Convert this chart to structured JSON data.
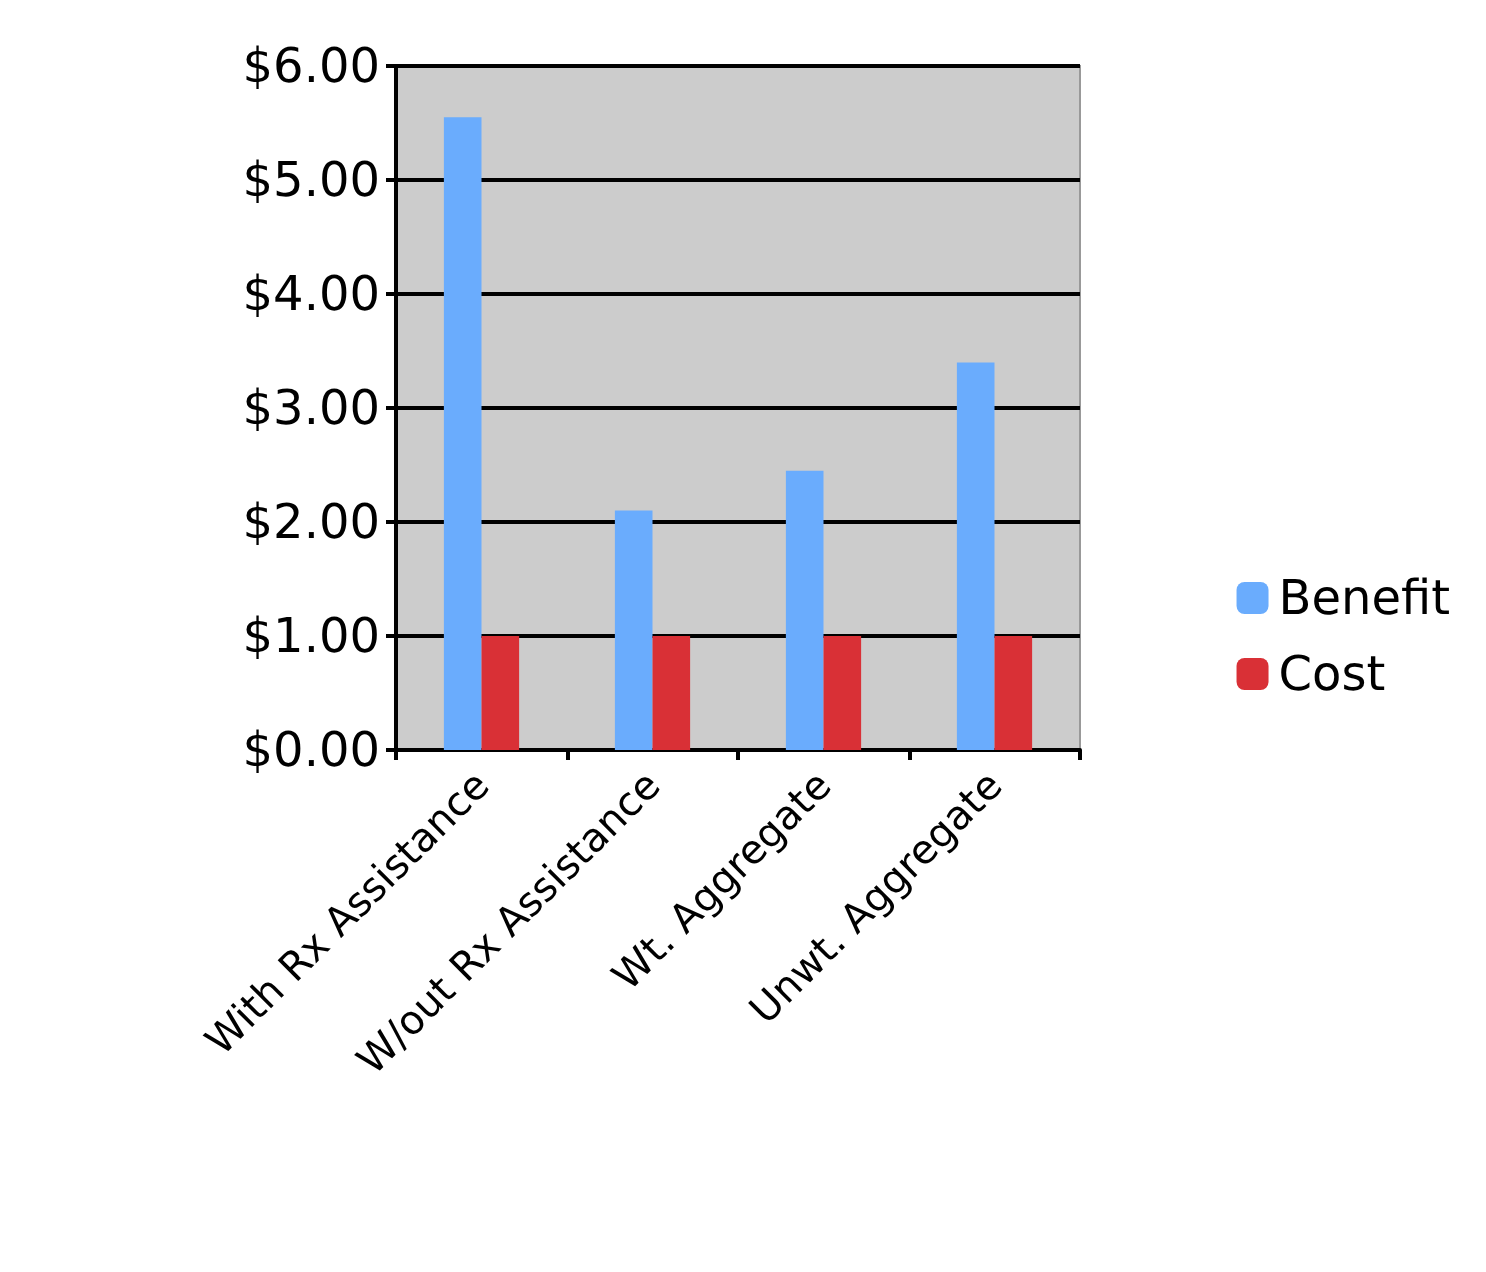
{
  "chart_data": {
    "type": "bar",
    "categories": [
      "With Rx Assistance",
      "W/out Rx Assistance",
      "Wt. Aggregate",
      "Unwt. Aggregate"
    ],
    "series": [
      {
        "name": "Benefit",
        "color": "#6aacfd",
        "values": [
          5.55,
          2.1,
          2.45,
          3.4
        ]
      },
      {
        "name": "Cost",
        "color": "#d93036",
        "values": [
          1,
          1,
          1,
          1
        ]
      }
    ],
    "ylim": [
      0,
      6
    ],
    "yticks": [
      {
        "value": 0,
        "label": "$0.00"
      },
      {
        "value": 1,
        "label": "$1.00"
      },
      {
        "value": 2,
        "label": "$2.00"
      },
      {
        "value": 3,
        "label": "$3.00"
      },
      {
        "value": 4,
        "label": "$4.00"
      },
      {
        "value": 5,
        "label": "$5.00"
      },
      {
        "value": 6,
        "label": "$6.00"
      }
    ],
    "grid": "y",
    "legend": "right"
  }
}
